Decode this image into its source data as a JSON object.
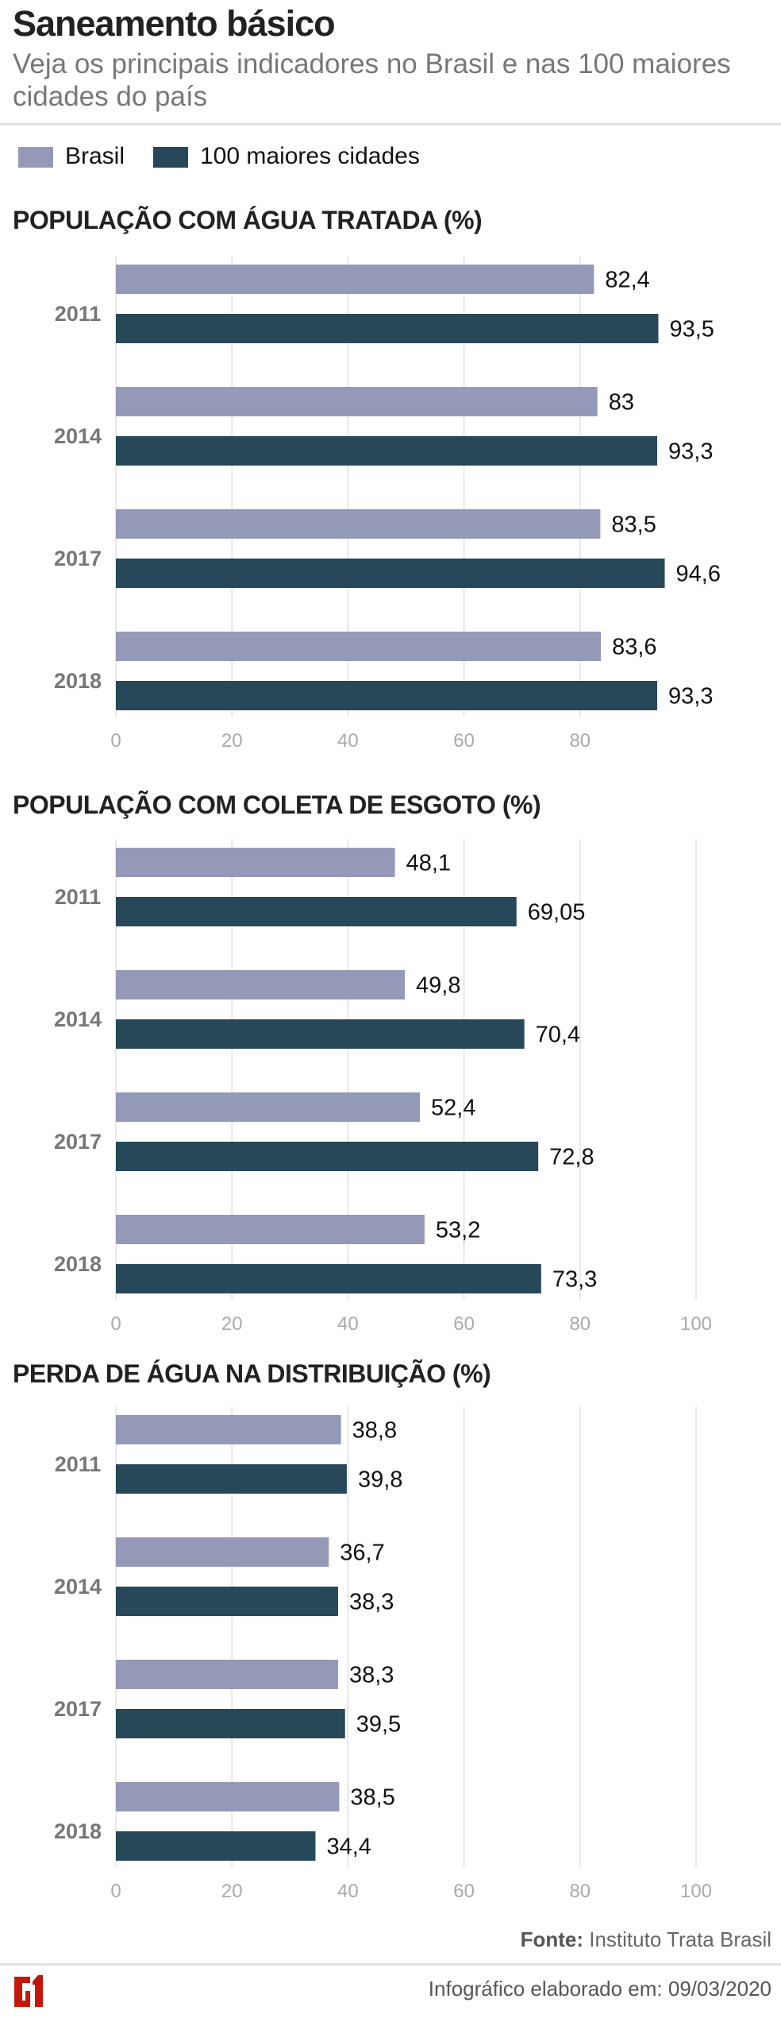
{
  "header": {
    "title": "Saneamento básico",
    "subtitle": "Veja os principais indicadores no Brasil e nas 100 maiores cidades do país"
  },
  "legend": [
    {
      "label": "Brasil",
      "color": "#9599b8"
    },
    {
      "label": "100 maiores cidades",
      "color": "#264858"
    }
  ],
  "chart_data": [
    {
      "type": "bar",
      "orientation": "horizontal",
      "title": "POPULAÇÃO COM ÁGUA TRATADA (%)",
      "categories": [
        "2011",
        "2014",
        "2017",
        "2018"
      ],
      "series": [
        {
          "name": "Brasil",
          "values": [
            82.4,
            83,
            83.5,
            83.6
          ],
          "labels": [
            "82,4",
            "83",
            "83,5",
            "83,6"
          ]
        },
        {
          "name": "100 maiores cidades",
          "values": [
            93.5,
            93.3,
            94.6,
            93.3
          ],
          "labels": [
            "93,5",
            "93,3",
            "94,6",
            "93,3"
          ]
        }
      ],
      "xticks": [
        0,
        20,
        40,
        60,
        80
      ],
      "xlim": [
        0,
        100
      ],
      "grid": true
    },
    {
      "type": "bar",
      "orientation": "horizontal",
      "title": "POPULAÇÃO COM COLETA DE ESGOTO (%)",
      "categories": [
        "2011",
        "2014",
        "2017",
        "2018"
      ],
      "series": [
        {
          "name": "Brasil",
          "values": [
            48.1,
            49.8,
            52.4,
            53.2
          ],
          "labels": [
            "48,1",
            "49,8",
            "52,4",
            "53,2"
          ]
        },
        {
          "name": "100 maiores cidades",
          "values": [
            69.05,
            70.4,
            72.8,
            73.3
          ],
          "labels": [
            "69,05",
            "70,4",
            "72,8",
            "73,3"
          ]
        }
      ],
      "xticks": [
        0,
        20,
        40,
        60,
        80,
        100
      ],
      "xlim": [
        0,
        100
      ],
      "grid": true
    },
    {
      "type": "bar",
      "orientation": "horizontal",
      "title": "PERDA DE ÁGUA NA DISTRIBUIÇÃO (%)",
      "categories": [
        "2011",
        "2014",
        "2017",
        "2018"
      ],
      "series": [
        {
          "name": "Brasil",
          "values": [
            38.8,
            36.7,
            38.3,
            38.5
          ],
          "labels": [
            "38,8",
            "36,7",
            "38,3",
            "38,5"
          ]
        },
        {
          "name": "100 maiores cidades",
          "values": [
            39.8,
            38.3,
            39.5,
            34.4
          ],
          "labels": [
            "39,8",
            "38,3",
            "39,5",
            "34,4"
          ]
        }
      ],
      "xticks": [
        0,
        20,
        40,
        60,
        80,
        100
      ],
      "xlim": [
        0,
        100
      ],
      "grid": true
    }
  ],
  "footer": {
    "source_label": "Fonte:",
    "source": "Instituto Trata Brasil",
    "created": "Infográfico elaborado em: 09/03/2020",
    "logo": "G1",
    "logo_color": "#c4170c"
  }
}
